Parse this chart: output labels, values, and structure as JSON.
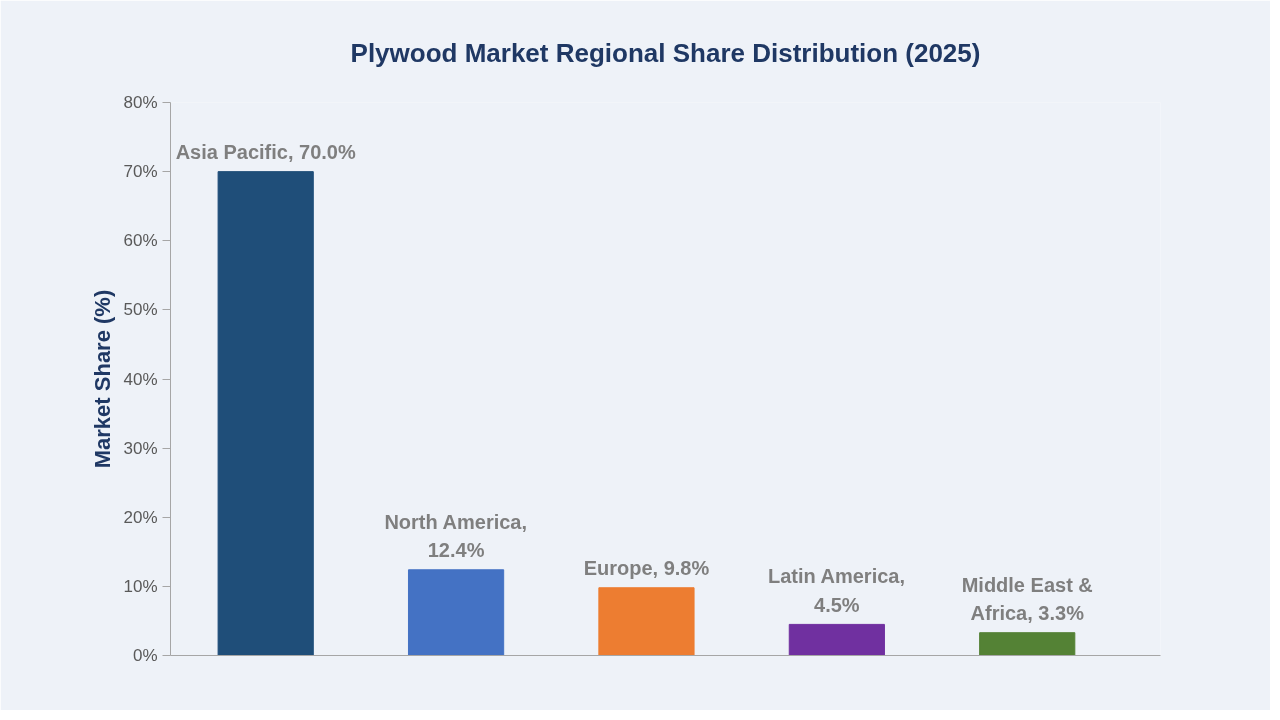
{
  "chart_data": {
    "type": "bar",
    "title": "Plywood Market Regional Share Distribution (2025)",
    "ylabel": "Market Share (%)",
    "categories": [
      null,
      null,
      null,
      null,
      null
    ],
    "values": [
      70.0,
      12.4,
      9.8,
      4.5,
      3.3
    ],
    "colors": [
      "#1f4e79",
      "#4472c4",
      "#ed7d31",
      "#7030a0",
      "#548235"
    ],
    "value_labels": [
      "Asia Pacific, 70.0%",
      "North America, 12.4%",
      "Europe, 9.8%",
      "Latin America, 4.5%",
      "Middle East & Africa, 3.3%"
    ],
    "ylim": [
      0,
      80
    ],
    "yticks": [
      {
        "value": 0,
        "label": "0%"
      },
      {
        "value": 10,
        "label": "10%"
      },
      {
        "value": 20,
        "label": "20%"
      },
      {
        "value": 30,
        "label": "30%"
      },
      {
        "value": 40,
        "label": "40%"
      },
      {
        "value": 50,
        "label": "50%"
      },
      {
        "value": 60,
        "label": "60%"
      },
      {
        "value": 70,
        "label": "70%"
      },
      {
        "value": 80,
        "label": "80%"
      }
    ],
    "grid": false
  }
}
